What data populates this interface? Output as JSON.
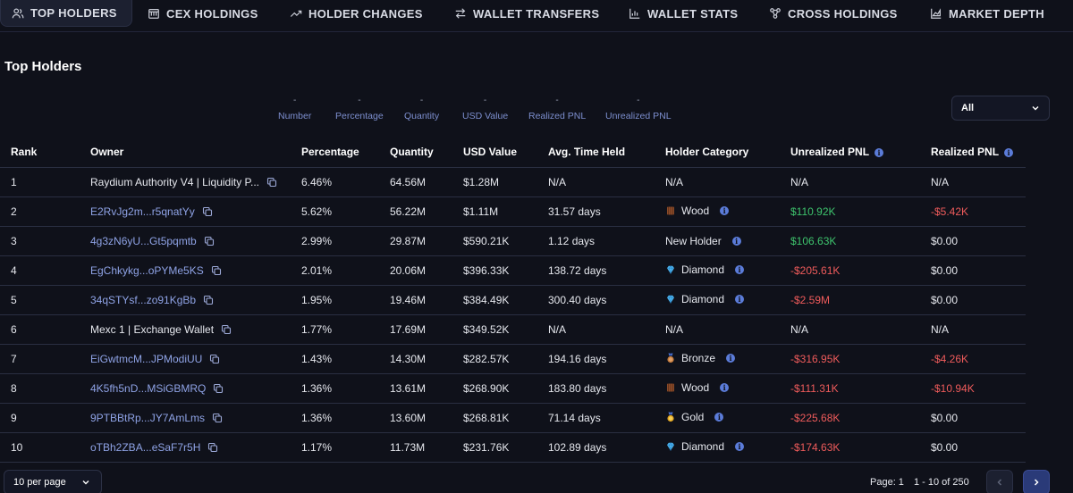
{
  "tabs": [
    {
      "label": "TOP HOLDERS",
      "icon": "users-icon",
      "active": true
    },
    {
      "label": "CEX HOLDINGS",
      "icon": "bank-icon",
      "active": false
    },
    {
      "label": "HOLDER CHANGES",
      "icon": "trend-icon",
      "active": false
    },
    {
      "label": "WALLET TRANSFERS",
      "icon": "transfer-icon",
      "active": false
    },
    {
      "label": "WALLET STATS",
      "icon": "bar-chart-icon",
      "active": false
    },
    {
      "label": "CROSS HOLDINGS",
      "icon": "nodes-icon",
      "active": false
    },
    {
      "label": "MARKET DEPTH",
      "icon": "area-chart-icon",
      "active": false
    }
  ],
  "section_title": "Top Holders",
  "stats": [
    {
      "value": "-",
      "label": "Number"
    },
    {
      "value": "-",
      "label": "Percentage"
    },
    {
      "value": "-",
      "label": "Quantity"
    },
    {
      "value": "-",
      "label": "USD Value"
    },
    {
      "value": "-",
      "label": "Realized PNL"
    },
    {
      "value": "-",
      "label": "Unrealized PNL"
    }
  ],
  "filter": {
    "selected": "All"
  },
  "table": {
    "headers": {
      "rank": "Rank",
      "owner": "Owner",
      "percentage": "Percentage",
      "quantity": "Quantity",
      "usd_value": "USD Value",
      "avg_time": "Avg. Time Held",
      "category": "Holder Category",
      "unrealized": "Unrealized PNL",
      "realized": "Realized PNL"
    },
    "rows": [
      {
        "rank": "1",
        "owner": "Raydium Authority V4 | Liquidity P...",
        "owner_link": false,
        "percentage": "6.46%",
        "quantity": "64.56M",
        "usd_value": "$1.28M",
        "avg_time": "N/A",
        "category": "N/A",
        "category_icon": "",
        "category_info": false,
        "unrealized": "N/A",
        "unrealized_tone": "neutral",
        "realized": "N/A",
        "realized_tone": "neutral"
      },
      {
        "rank": "2",
        "owner": "E2RvJg2m...r5qnatYy",
        "owner_link": true,
        "percentage": "5.62%",
        "quantity": "56.22M",
        "usd_value": "$1.11M",
        "avg_time": "31.57 days",
        "category": "Wood",
        "category_icon": "wood-icon",
        "category_info": true,
        "unrealized": "$110.92K",
        "unrealized_tone": "pos",
        "realized": "-$5.42K",
        "realized_tone": "neg"
      },
      {
        "rank": "3",
        "owner": "4g3zN6yU...Gt5pqmtb",
        "owner_link": true,
        "percentage": "2.99%",
        "quantity": "29.87M",
        "usd_value": "$590.21K",
        "avg_time": "1.12 days",
        "category": "New Holder",
        "category_icon": "",
        "category_info": true,
        "unrealized": "$106.63K",
        "unrealized_tone": "pos",
        "realized": "$0.00",
        "realized_tone": "neutral"
      },
      {
        "rank": "4",
        "owner": "EgChkykg...oPYMe5KS",
        "owner_link": true,
        "percentage": "2.01%",
        "quantity": "20.06M",
        "usd_value": "$396.33K",
        "avg_time": "138.72 days",
        "category": "Diamond",
        "category_icon": "diamond-icon",
        "category_info": true,
        "unrealized": "-$205.61K",
        "unrealized_tone": "neg",
        "realized": "$0.00",
        "realized_tone": "neutral"
      },
      {
        "rank": "5",
        "owner": "34qSTYsf...zo91KgBb",
        "owner_link": true,
        "percentage": "1.95%",
        "quantity": "19.46M",
        "usd_value": "$384.49K",
        "avg_time": "300.40 days",
        "category": "Diamond",
        "category_icon": "diamond-icon",
        "category_info": true,
        "unrealized": "-$2.59M",
        "unrealized_tone": "neg",
        "realized": "$0.00",
        "realized_tone": "neutral"
      },
      {
        "rank": "6",
        "owner": "Mexc 1 | Exchange Wallet",
        "owner_link": false,
        "percentage": "1.77%",
        "quantity": "17.69M",
        "usd_value": "$349.52K",
        "avg_time": "N/A",
        "category": "N/A",
        "category_icon": "",
        "category_info": false,
        "unrealized": "N/A",
        "unrealized_tone": "neutral",
        "realized": "N/A",
        "realized_tone": "neutral"
      },
      {
        "rank": "7",
        "owner": "EiGwtmcM...JPModiUU",
        "owner_link": true,
        "percentage": "1.43%",
        "quantity": "14.30M",
        "usd_value": "$282.57K",
        "avg_time": "194.16 days",
        "category": "Bronze",
        "category_icon": "bronze-medal-icon",
        "category_info": true,
        "unrealized": "-$316.95K",
        "unrealized_tone": "neg",
        "realized": "-$4.26K",
        "realized_tone": "neg"
      },
      {
        "rank": "8",
        "owner": "4K5fh5nD...MSiGBMRQ",
        "owner_link": true,
        "percentage": "1.36%",
        "quantity": "13.61M",
        "usd_value": "$268.90K",
        "avg_time": "183.80 days",
        "category": "Wood",
        "category_icon": "wood-icon",
        "category_info": true,
        "unrealized": "-$111.31K",
        "unrealized_tone": "neg",
        "realized": "-$10.94K",
        "realized_tone": "neg"
      },
      {
        "rank": "9",
        "owner": "9PTBBtRp...JY7AmLms",
        "owner_link": true,
        "percentage": "1.36%",
        "quantity": "13.60M",
        "usd_value": "$268.81K",
        "avg_time": "71.14 days",
        "category": "Gold",
        "category_icon": "gold-medal-icon",
        "category_info": true,
        "unrealized": "-$225.68K",
        "unrealized_tone": "neg",
        "realized": "$0.00",
        "realized_tone": "neutral"
      },
      {
        "rank": "10",
        "owner": "oTBh2ZBA...eSaF7r5H",
        "owner_link": true,
        "percentage": "1.17%",
        "quantity": "11.73M",
        "usd_value": "$231.76K",
        "avg_time": "102.89 days",
        "category": "Diamond",
        "category_icon": "diamond-icon",
        "category_info": true,
        "unrealized": "-$174.63K",
        "unrealized_tone": "neg",
        "realized": "$0.00",
        "realized_tone": "neutral"
      }
    ]
  },
  "pagination": {
    "per_page": "10 per page",
    "page": "Page: 1",
    "range": "1 - 10 of 250"
  },
  "colors": {
    "background": "#0f111a",
    "link": "#8fa3e6",
    "positive": "#3ec46d",
    "negative": "#ef5b5b",
    "accent": "#2a3a78"
  }
}
